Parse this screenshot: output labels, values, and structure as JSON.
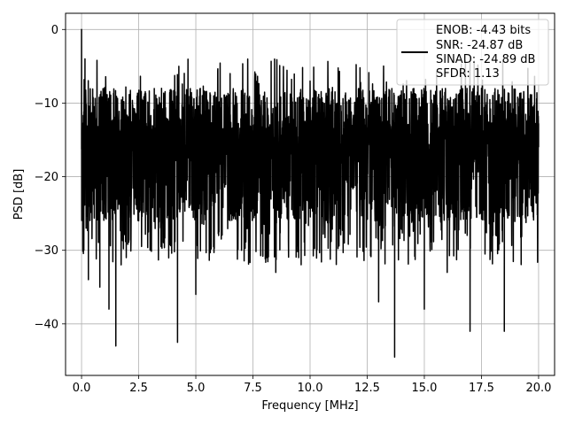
{
  "chart_data": {
    "type": "line",
    "title": "",
    "xlabel": "Frequency [MHz]",
    "ylabel": "PSD [dB]",
    "xlim": [
      -0.7,
      20.7
    ],
    "ylim": [
      -47,
      2.2
    ],
    "xticks": [
      0.0,
      2.5,
      5.0,
      7.5,
      10.0,
      12.5,
      15.0,
      17.5,
      20.0
    ],
    "xtick_labels": [
      "0.0",
      "2.5",
      "5.0",
      "7.5",
      "10.0",
      "12.5",
      "15.0",
      "17.5",
      "20.0"
    ],
    "yticks": [
      0,
      -10,
      -20,
      -30,
      -40
    ],
    "ytick_labels": [
      "0",
      "−10",
      "−20",
      "−30",
      "−40"
    ],
    "grid": true,
    "legend_position": "top-right",
    "line_color": "#000000",
    "series": [
      {
        "name": "ENOB: -4.43 bits\nSNR: -24.87 dB\nSINAD: -24.89 dB\nSFDR: 1.13",
        "x": [
          0.0,
          0.05,
          0.1,
          0.15,
          0.2,
          0.3,
          0.5,
          0.8,
          1.0,
          1.2,
          1.5,
          2.0,
          2.5,
          3.0,
          3.5,
          4.0,
          4.2,
          4.5,
          5.0,
          5.5,
          6.0,
          6.5,
          7.0,
          7.5,
          8.0,
          8.5,
          9.0,
          9.5,
          10.0,
          10.5,
          11.0,
          11.5,
          12.0,
          12.5,
          13.0,
          13.7,
          14.0,
          14.5,
          15.0,
          15.5,
          16.0,
          16.5,
          17.0,
          17.5,
          18.0,
          18.5,
          19.0,
          19.5,
          20.0
        ],
        "y": [
          0.0,
          -13.5,
          -30.0,
          -4.0,
          -27.0,
          -34.0,
          -10.0,
          -35.0,
          -20.0,
          -38.0,
          -43.0,
          -12.0,
          -26.0,
          -30.0,
          -8.0,
          -24.0,
          -42.5,
          -15.0,
          -36.0,
          -11.0,
          -28.0,
          -6.0,
          -30.0,
          -19.0,
          -9.0,
          -33.0,
          -14.0,
          -31.0,
          -7.0,
          -27.0,
          -10.0,
          -29.0,
          -16.0,
          -23.0,
          -37.0,
          -44.5,
          -9.5,
          -26.0,
          -38.0,
          -11.0,
          -33.0,
          -15.0,
          -41.0,
          -8.0,
          -28.0,
          -41.0,
          -12.0,
          -24.0,
          -16.0
        ]
      }
    ]
  },
  "legend": {
    "lines": [
      "ENOB: -4.43 bits",
      "SNR: -24.87 dB",
      "SINAD: -24.89 dB",
      "SFDR: 1.13"
    ]
  }
}
